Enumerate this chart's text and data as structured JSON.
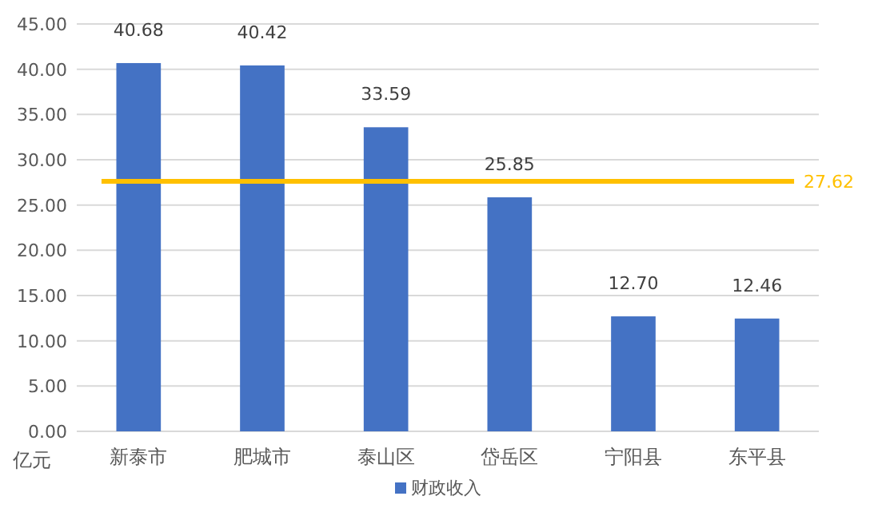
{
  "chart_data": {
    "type": "bar",
    "ylabel": "亿元",
    "categories": [
      "新泰市",
      "肥城市",
      "泰山区",
      "岱岳区",
      "宁阳县",
      "东平县"
    ],
    "series": [
      {
        "name": "财政收入",
        "color": "#4472c4",
        "values": [
          40.68,
          40.42,
          33.59,
          25.85,
          12.7,
          12.46
        ],
        "value_labels": [
          "40.68",
          "40.42",
          "33.59",
          "25.85",
          "12.70",
          "12.46"
        ]
      }
    ],
    "ylim": [
      0,
      45
    ],
    "yticks": [
      {
        "value": 0,
        "label": "0.00"
      },
      {
        "value": 5,
        "label": "5.00"
      },
      {
        "value": 10,
        "label": "10.00"
      },
      {
        "value": 15,
        "label": "15.00"
      },
      {
        "value": 20,
        "label": "20.00"
      },
      {
        "value": 25,
        "label": "25.00"
      },
      {
        "value": 30,
        "label": "30.00"
      },
      {
        "value": 35,
        "label": "35.00"
      },
      {
        "value": 40,
        "label": "40.00"
      },
      {
        "value": 45,
        "label": "45.00"
      }
    ],
    "grid": "y",
    "legend": "bottom",
    "ref_lines": [
      {
        "axis": "y",
        "value": 27.62,
        "label": "27.62",
        "color": "#ffc000"
      }
    ]
  }
}
